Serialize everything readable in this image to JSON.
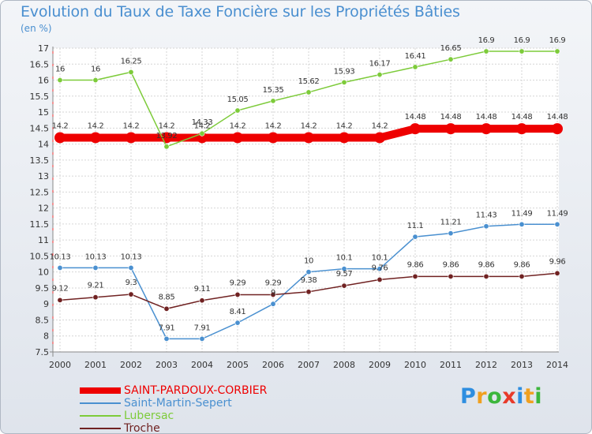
{
  "title": "Evolution du Taux de Taxe Foncière sur les Propriétés Bâties",
  "unit_label": "(en %)",
  "brand": {
    "text": "Proxiti",
    "letters": [
      {
        "ch": "P",
        "color": "#2e8ee0"
      },
      {
        "ch": "r",
        "color": "#f0a020"
      },
      {
        "ch": "o",
        "color": "#3cb63c"
      },
      {
        "ch": "x",
        "color": "#e83a2a"
      },
      {
        "ch": "i",
        "color": "#2e8ee0"
      },
      {
        "ch": "t",
        "color": "#f0a020"
      },
      {
        "ch": "i",
        "color": "#3cb63c"
      }
    ]
  },
  "chart_data": {
    "type": "line",
    "title": "Evolution du Taux de Taxe Foncière sur les Propriétés Bâties",
    "ylabel": "(en %)",
    "xlabel": "",
    "ylim": [
      7.5,
      17
    ],
    "ytick_step": 0.5,
    "ytick_labels": [
      "7.5",
      "8",
      "8.5",
      "9",
      "9.5",
      "10",
      "10.5",
      "11",
      "11.5",
      "12",
      "12.5",
      "13",
      "13.5",
      "14",
      "14.5",
      "15",
      "15.5",
      "16",
      "16.5",
      "17"
    ],
    "grid": true,
    "legend_position": "bottom-left",
    "x": [
      "2000",
      "2001",
      "2002",
      "2003",
      "2004",
      "2005",
      "2006",
      "2007",
      "2008",
      "2009",
      "2010",
      "2011",
      "2012",
      "2013",
      "2014"
    ],
    "series": [
      {
        "name": "SAINT-PARDOUX-CORBIER",
        "color": "#ee0000",
        "bold": true,
        "values": [
          14.2,
          14.2,
          14.2,
          14.2,
          14.2,
          14.2,
          14.2,
          14.2,
          14.2,
          14.2,
          14.48,
          14.48,
          14.48,
          14.48,
          14.48
        ],
        "labels": [
          "14.2",
          "14.2",
          "14.2",
          "14.2",
          "14.2",
          "14.2",
          "14.2",
          "14.2",
          "14.2",
          "14.2",
          "14.48",
          "14.48",
          "14.48",
          "14.48",
          "14.48"
        ]
      },
      {
        "name": "Saint-Martin-Sepert",
        "color": "#4a90d0",
        "bold": false,
        "values": [
          10.13,
          10.13,
          10.13,
          7.91,
          7.91,
          8.41,
          9.0,
          10.0,
          10.1,
          10.1,
          11.1,
          11.21,
          11.43,
          11.49,
          11.49
        ],
        "labels": [
          "10.13",
          "10.13",
          "10.13",
          "7.91",
          "7.91",
          "8.41",
          "9",
          "10",
          "10.1",
          "10.1",
          "11.1",
          "11.21",
          "11.43",
          "11.49",
          "11.49"
        ]
      },
      {
        "name": "Lubersac",
        "color": "#7dcb3a",
        "bold": false,
        "values": [
          16,
          16,
          16.25,
          13.92,
          14.33,
          15.05,
          15.35,
          15.62,
          15.93,
          16.17,
          16.41,
          16.65,
          16.9,
          16.9,
          16.9
        ],
        "labels": [
          "16",
          "16",
          "16.25",
          "13.92",
          "14.33",
          "15.05",
          "15.35",
          "15.62",
          "15.93",
          "16.17",
          "16.41",
          "16.65",
          "16.9",
          "16.9",
          "16.9"
        ]
      },
      {
        "name": "Troche",
        "color": "#702222",
        "bold": false,
        "values": [
          9.12,
          9.21,
          9.3,
          8.85,
          9.11,
          9.29,
          9.29,
          9.38,
          9.57,
          9.76,
          9.86,
          9.86,
          9.86,
          9.86,
          9.96
        ],
        "labels": [
          "9.12",
          "9.21",
          "9.3",
          "8.85",
          "9.11",
          "9.29",
          "9.29",
          "9.38",
          "9.57",
          "9.76",
          "9.86",
          "9.86",
          "9.86",
          "9.86",
          "9.96"
        ]
      }
    ]
  }
}
